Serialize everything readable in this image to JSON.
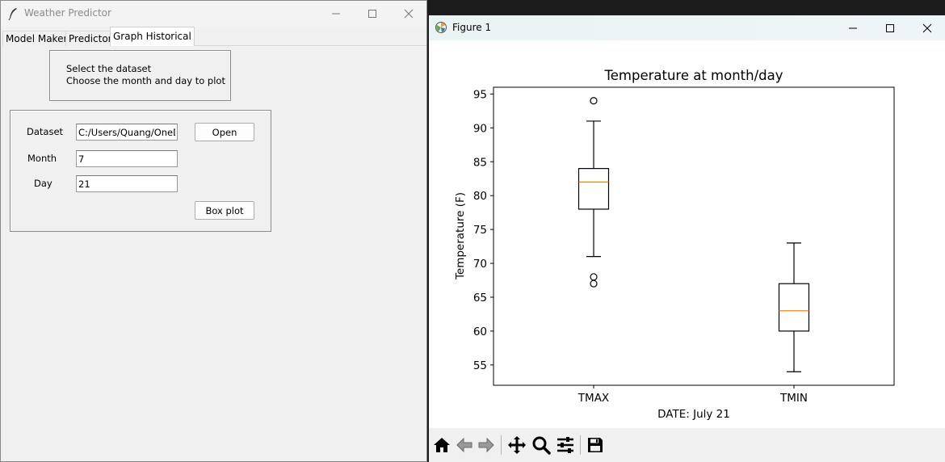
{
  "app_window": {
    "title": "Weather Predictor",
    "tabs": [
      {
        "label": "Model Maker",
        "active": false
      },
      {
        "label": "Predictor",
        "active": false
      },
      {
        "label": "Graph Historical",
        "active": true
      }
    ],
    "instructions": [
      "Select the dataset",
      "Choose the month and day to plot"
    ],
    "form": {
      "dataset_label": "Dataset",
      "dataset_value": "C:/Users/Quang/OneD",
      "open_button": "Open",
      "month_label": "Month",
      "month_value": "7",
      "day_label": "Day",
      "day_value": "21",
      "boxplot_button": "Box plot"
    }
  },
  "figure_window": {
    "title": "Figure 1",
    "toolbar_icons": [
      "home-icon",
      "back-arrow-icon",
      "forward-arrow-icon",
      "pan-move-icon",
      "zoom-magnifier-icon",
      "configure-subplots-icon",
      "save-disk-icon"
    ]
  },
  "chart_data": {
    "type": "box",
    "title": "Temperature at month/day",
    "xlabel": "DATE: July 21",
    "ylabel": "Temperature (F)",
    "ylim": [
      52,
      96
    ],
    "yticks": [
      55,
      60,
      65,
      70,
      75,
      80,
      85,
      90,
      95
    ],
    "categories": [
      "TMAX",
      "TMIN"
    ],
    "boxes": [
      {
        "name": "TMAX",
        "whislo": 71,
        "q1": 78,
        "med": 82,
        "q3": 84,
        "whishi": 91,
        "fliers": [
          94,
          68,
          67
        ]
      },
      {
        "name": "TMIN",
        "whislo": 54,
        "q1": 60,
        "med": 63,
        "q3": 67,
        "whishi": 73,
        "fliers": []
      }
    ],
    "grid": false,
    "colors": {
      "box": "#000000",
      "median": "#ff7f0e"
    }
  }
}
